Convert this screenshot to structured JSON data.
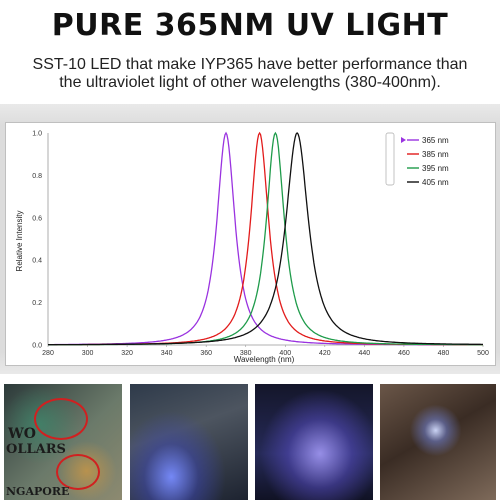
{
  "header": {
    "title": "PURE 365NM UV LIGHT",
    "subtitle_line1": "SST-10 LED that make IYP365 have better performance than",
    "subtitle_line2": "the ultraviolet light of other wavelengths (380-400nm)."
  },
  "chart_data": {
    "type": "line",
    "xlabel": "Wavelength (nm)",
    "ylabel": "Relative Intensity",
    "xlim": [
      280,
      500
    ],
    "ylim": [
      0,
      1.0
    ],
    "x_ticks": [
      280,
      300,
      320,
      340,
      360,
      380,
      400,
      420,
      440,
      460,
      480,
      500
    ],
    "y_ticks": [
      "0.0",
      "0.2",
      "0.4",
      "0.6",
      "0.8",
      "1.0"
    ],
    "grid": "none",
    "legend_position": "top-right",
    "series": [
      {
        "name": "365 nm",
        "color": "#9a33e0",
        "peak_x": 370,
        "fwhm": 12,
        "x": [
          340,
          350,
          360,
          365,
          370,
          375,
          380,
          390,
          400
        ],
        "y": [
          0.02,
          0.08,
          0.35,
          0.75,
          1.0,
          0.75,
          0.35,
          0.06,
          0.01
        ]
      },
      {
        "name": "385 nm",
        "color": "#e21b1b",
        "peak_x": 387,
        "fwhm": 12,
        "x": [
          355,
          365,
          375,
          380,
          387,
          395,
          400,
          410,
          420
        ],
        "y": [
          0.01,
          0.05,
          0.3,
          0.6,
          1.0,
          0.58,
          0.3,
          0.06,
          0.01
        ]
      },
      {
        "name": "395 nm",
        "color": "#1e9b4a",
        "peak_x": 395,
        "fwhm": 12,
        "x": [
          365,
          375,
          385,
          390,
          395,
          400,
          405,
          415,
          430
        ],
        "y": [
          0.01,
          0.05,
          0.3,
          0.7,
          1.0,
          0.7,
          0.32,
          0.06,
          0.01
        ]
      },
      {
        "name": "405 nm",
        "color": "#111111",
        "peak_x": 406,
        "fwhm": 15,
        "x": [
          370,
          385,
          395,
          400,
          406,
          412,
          420,
          430,
          445
        ],
        "y": [
          0.01,
          0.1,
          0.4,
          0.75,
          1.0,
          0.75,
          0.3,
          0.08,
          0.01
        ]
      }
    ]
  },
  "photos": {
    "photo1_text_a": "WO",
    "photo1_text_b": "OLLARS",
    "photo1_text_c": "NGAPORE"
  }
}
